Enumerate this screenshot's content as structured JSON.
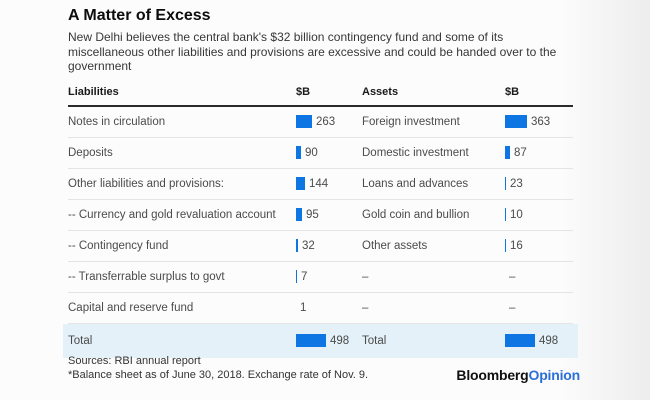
{
  "header": {
    "title": "A Matter of Excess",
    "subtitle": "New Delhi believes the central bank's $32 billion contingency fund and some of its miscellaneous other liabilities and provisions are excessive and could be handed over to the government"
  },
  "table": {
    "header": {
      "liabilities": "Liabilities",
      "liabilities_unit": "$B",
      "assets": "Assets",
      "assets_unit": "$B"
    },
    "rows": [
      {
        "liability_label": "Notes in circulation",
        "liability_value": 263,
        "asset_label": "Foreign investment",
        "asset_value": 363
      },
      {
        "liability_label": "Deposits",
        "liability_value": 90,
        "asset_label": "Domestic investment",
        "asset_value": 87
      },
      {
        "liability_label": "Other liabilities and provisions:",
        "liability_value": 144,
        "asset_label": "Loans and advances",
        "asset_value": 23
      },
      {
        "liability_label": "-- Currency and gold revaluation account",
        "liability_value": 95,
        "asset_label": "Gold coin and bullion",
        "asset_value": 10
      },
      {
        "liability_label": "-- Contingency fund",
        "liability_value": 32,
        "asset_label": "Other assets",
        "asset_value": 16
      },
      {
        "liability_label": "-- Transferrable surplus to govt",
        "liability_value": 7,
        "asset_label": "–",
        "asset_value": "–"
      },
      {
        "liability_label": "Capital and reserve fund",
        "liability_value": 1,
        "asset_label": "–",
        "asset_value": "–"
      }
    ],
    "total": {
      "liability_label": "Total",
      "liability_value": 498,
      "asset_label": "Total",
      "asset_value": 498
    }
  },
  "footer": {
    "sources": "Sources: RBI annual report",
    "note": "*Balance sheet as of June 30, 2018. Exchange rate of Nov. 9.",
    "logo_black": "Bloomberg",
    "logo_blue": "Opinion"
  },
  "colors": {
    "bar_blue": "#0e76e3",
    "total_row_bg": "#e4f1f9",
    "logo_blue": "#2b6fd9"
  },
  "chart_data": {
    "type": "bar",
    "orientation": "horizontal",
    "title": "A Matter of Excess",
    "subtitle": "New Delhi believes the central bank's $32 billion contingency fund and some of its miscellaneous other liabilities and provisions are excessive and could be handed over to the government",
    "unit": "$B",
    "max_value": 498,
    "series": [
      {
        "name": "Liabilities",
        "categories": [
          "Notes in circulation",
          "Deposits",
          "Other liabilities and provisions:",
          "-- Currency and gold revaluation account",
          "-- Contingency fund",
          "-- Transferrable surplus to govt",
          "Capital and reserve fund",
          "Total"
        ],
        "values": [
          263,
          90,
          144,
          95,
          32,
          7,
          1,
          498
        ]
      },
      {
        "name": "Assets",
        "categories": [
          "Foreign investment",
          "Domestic investment",
          "Loans and advances",
          "Gold coin and bullion",
          "Other assets",
          null,
          null,
          "Total"
        ],
        "values": [
          363,
          87,
          23,
          10,
          16,
          null,
          null,
          498
        ]
      }
    ],
    "sources": "Sources: RBI annual report",
    "note": "*Balance sheet as of June 30, 2018. Exchange rate of Nov. 9."
  }
}
